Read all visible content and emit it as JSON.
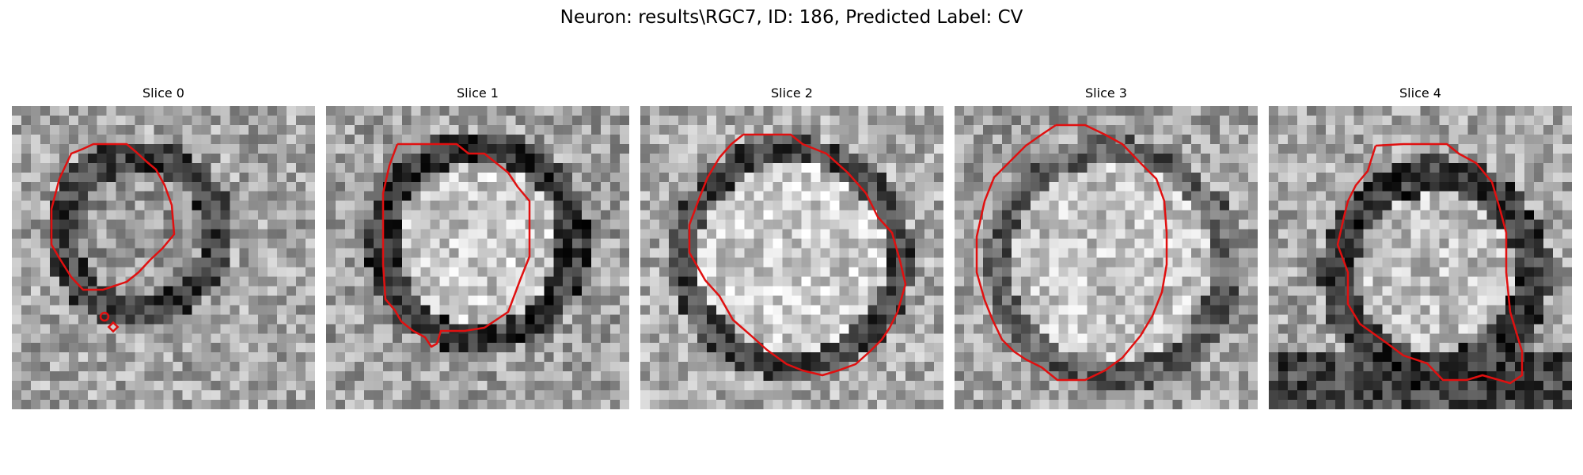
{
  "figure": {
    "title": "Neuron: results\\RGC7, ID: 186, Predicted Label: CV"
  },
  "colors": {
    "outline": "#e01010",
    "background": "#ffffff"
  },
  "panels": [
    {
      "title": "Slice 0"
    },
    {
      "title": "Slice 1"
    },
    {
      "title": "Slice 2"
    },
    {
      "title": "Slice 3"
    },
    {
      "title": "Slice 4"
    }
  ]
}
